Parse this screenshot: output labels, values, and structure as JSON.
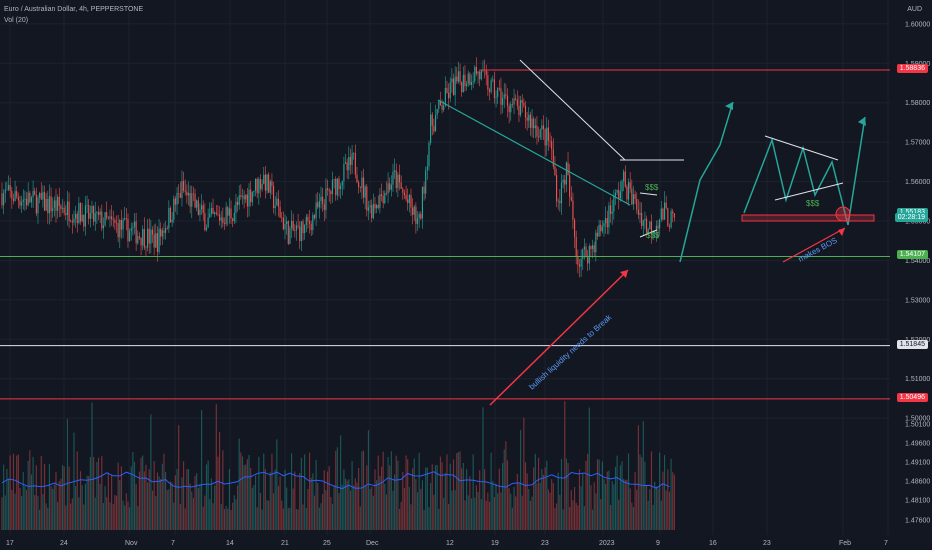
{
  "legend": {
    "symbol": "Euro / Australian Dollar, 4h, PEPPERSTONE",
    "indicator": "Vol (20)"
  },
  "currency": "AUD",
  "price_tags": [
    {
      "text": "1.58836",
      "price": 1.5883,
      "bg": "#f23645"
    },
    {
      "text": "1.55183",
      "price": 1.5518,
      "bg": "#26a69a"
    },
    {
      "text": "02:28:19",
      "price": 1.5505,
      "bg": "#26a69a"
    },
    {
      "text": "1.54107",
      "price": 1.541,
      "bg": "#4caf50"
    },
    {
      "text": "1.51845",
      "price": 1.5184,
      "bg": "#e0e3eb",
      "fg": "#131722"
    },
    {
      "text": "1.50496",
      "price": 1.5049,
      "bg": "#f23645"
    }
  ],
  "annotations": [
    {
      "name": "dollar-label-1",
      "text": "$$$",
      "price": 1.5615,
      "x_index": 198,
      "color": "#4caf50"
    },
    {
      "name": "dollar-label-2",
      "text": "$$$",
      "price": 1.5505,
      "x_index": 195,
      "color": "#4caf50"
    },
    {
      "name": "dollar-label-3",
      "text": "$$$",
      "price": 1.556,
      "x_index": 248,
      "color": "#4caf50"
    },
    {
      "name": "bullish-note",
      "text": "bullish liquidity needs to Break",
      "color": "#5b9cf6"
    },
    {
      "name": "makes-bos-note",
      "text": "makes BOS",
      "color": "#5b9cf6"
    }
  ],
  "chart_data": {
    "type": "candlestick",
    "title": "Euro / Australian Dollar, 4h, PEPPERSTONE",
    "ylabel": "AUD",
    "ylim": [
      1.497,
      1.603
    ],
    "y_ticks": [
      "1.60000",
      "1.59000",
      "1.58000",
      "1.57000",
      "1.56000",
      "1.55000",
      "1.54000",
      "1.53000",
      "1.52000",
      "1.51000",
      "1.50000"
    ],
    "x_tick_labels": [
      "17",
      "24",
      "Nov",
      "7",
      "14",
      "21",
      "25",
      "Dec",
      "12",
      "19",
      "23",
      "2023",
      "9",
      "16",
      "23",
      "Feb",
      "7"
    ],
    "volume_ticks": [
      "1.50100",
      "1.49600",
      "1.49100",
      "1.48600",
      "1.48100",
      "1.47600"
    ],
    "horizontal_levels": [
      {
        "name": "resistance-1.58836",
        "price": 1.5883,
        "color": "#f23645"
      },
      {
        "name": "support-1.54107",
        "price": 1.541,
        "color": "#4caf50"
      },
      {
        "name": "level-1.51845",
        "price": 1.5184,
        "color": "#e0e3eb"
      },
      {
        "name": "level-1.50496",
        "price": 1.5049,
        "color": "#f23645"
      }
    ],
    "candles": []
  }
}
